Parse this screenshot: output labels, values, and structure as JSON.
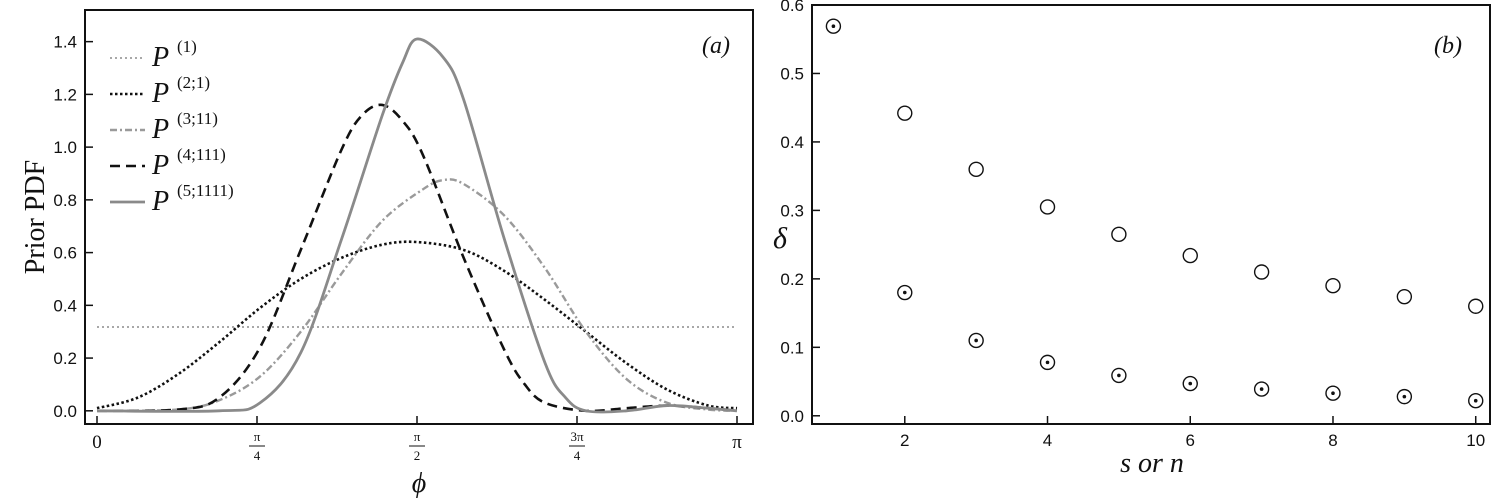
{
  "chart_data": [
    {
      "type": "line",
      "panel_label": "(a)",
      "ylabel": "Prior PDF",
      "xlabel": "ϕ",
      "xlim": [
        0,
        3.14159
      ],
      "ylim": [
        -0.05,
        1.52
      ],
      "x_ticks": [
        {
          "value": 0,
          "label": "0"
        },
        {
          "value": 0.7854,
          "num": "π",
          "den": "4"
        },
        {
          "value": 1.5708,
          "num": "π",
          "den": "2"
        },
        {
          "value": 2.3562,
          "num": "3π",
          "den": "4"
        },
        {
          "value": 3.14159,
          "label": "π"
        }
      ],
      "y_ticks": [
        "0.0",
        "0.2",
        "0.4",
        "0.6",
        "0.8",
        "1.0",
        "1.2",
        "1.4"
      ],
      "legend_position": "top-left",
      "series": [
        {
          "base": "P",
          "sup": "(1)",
          "style": "dotted-light",
          "color": "#a8a8a8",
          "x": [
            0,
            3.14159
          ],
          "y": [
            0.318,
            0.318
          ]
        },
        {
          "base": "P",
          "sup": "(2;1)",
          "style": "dotted-dark",
          "color": "#111111",
          "x": [
            0,
            0.2,
            0.4,
            0.6,
            0.8,
            1.0,
            1.2,
            1.4,
            1.5708,
            1.8,
            2.0,
            2.2,
            2.4,
            2.6,
            2.8,
            3.0,
            3.14159
          ],
          "y": [
            0.01,
            0.05,
            0.14,
            0.26,
            0.39,
            0.5,
            0.58,
            0.63,
            0.64,
            0.61,
            0.53,
            0.42,
            0.3,
            0.18,
            0.08,
            0.02,
            0.01
          ]
        },
        {
          "base": "P",
          "sup": "(3;11)",
          "style": "dashdot-light",
          "color": "#9a9a9a",
          "x": [
            0,
            0.4,
            0.6,
            0.8,
            1.0,
            1.2,
            1.4,
            1.6,
            1.7,
            1.8,
            2.0,
            2.2,
            2.4,
            2.6,
            2.8,
            3.0,
            3.14159
          ],
          "y": [
            0.0,
            0.005,
            0.04,
            0.13,
            0.3,
            0.52,
            0.72,
            0.84,
            0.875,
            0.86,
            0.74,
            0.54,
            0.3,
            0.12,
            0.03,
            0.005,
            0.0
          ]
        },
        {
          "base": "P",
          "sup": "(4;111)",
          "style": "dashed",
          "color": "#111111",
          "x": [
            0,
            0.4,
            0.6,
            0.8,
            1.0,
            1.2,
            1.3,
            1.4,
            1.5,
            1.6,
            1.8,
            2.0,
            2.1,
            2.2,
            2.4,
            2.6,
            2.8,
            3.0,
            3.14159
          ],
          "y": [
            0.0,
            0.005,
            0.05,
            0.24,
            0.61,
            0.99,
            1.12,
            1.16,
            1.1,
            0.97,
            0.58,
            0.23,
            0.1,
            0.03,
            0.0,
            0.01,
            0.02,
            0.01,
            0.0
          ]
        },
        {
          "base": "P",
          "sup": "(5;1111)",
          "style": "solid",
          "color": "#8a8a8a",
          "x": [
            0,
            0.6,
            0.8,
            1.0,
            1.2,
            1.4,
            1.5,
            1.5708,
            1.7,
            1.8,
            2.0,
            2.2,
            2.3,
            2.4,
            2.6,
            2.8,
            3.0,
            3.14159
          ],
          "y": [
            0.0,
            0.0,
            0.03,
            0.22,
            0.65,
            1.12,
            1.32,
            1.41,
            1.34,
            1.18,
            0.65,
            0.18,
            0.05,
            0.0,
            0.0,
            0.02,
            0.01,
            0.0
          ]
        }
      ]
    },
    {
      "type": "scatter",
      "panel_label": "(b)",
      "ylabel": "δ",
      "xlabel": "s or n",
      "xlim": [
        0.7,
        10.2
      ],
      "ylim": [
        -0.012,
        0.6
      ],
      "x_ticks": [
        "2",
        "4",
        "6",
        "8",
        "10"
      ],
      "y_ticks": [
        "0.0",
        "0.1",
        "0.2",
        "0.3",
        "0.4",
        "0.5",
        "0.6"
      ],
      "series": [
        {
          "marker": "open-circle",
          "x": [
            2,
            3,
            4,
            5,
            6,
            7,
            8,
            9,
            10
          ],
          "y": [
            0.442,
            0.36,
            0.305,
            0.265,
            0.234,
            0.21,
            0.19,
            0.174,
            0.16
          ]
        },
        {
          "marker": "dotted-circle",
          "x": [
            1,
            2,
            3,
            4,
            5,
            6,
            7,
            8,
            9,
            10
          ],
          "y": [
            0.569,
            0.18,
            0.11,
            0.078,
            0.059,
            0.047,
            0.039,
            0.033,
            0.028,
            0.022
          ]
        }
      ]
    }
  ]
}
